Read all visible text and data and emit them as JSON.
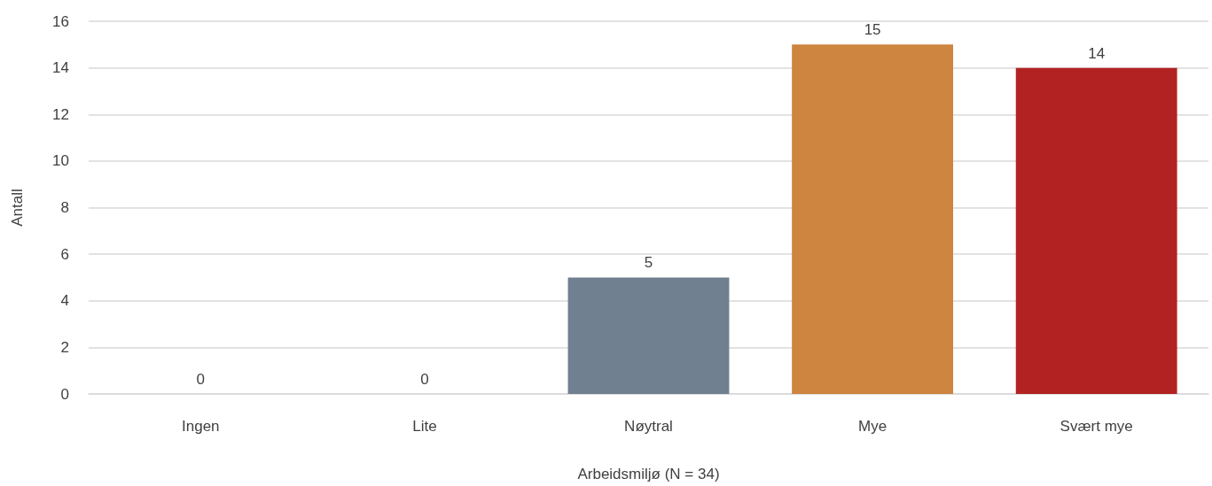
{
  "chart_data": {
    "type": "bar",
    "xlabel": "Arbeidsmiljø (N = 34)",
    "ylabel": "Antall",
    "categories": [
      "Ingen",
      "Lite",
      "Nøytral",
      "Mye",
      "Svært mye"
    ],
    "values": [
      0,
      0,
      5,
      15,
      14
    ],
    "colors": [
      "#708090",
      "#708090",
      "#708090",
      "#cd853f",
      "#b22222"
    ],
    "ylim": [
      0,
      16
    ],
    "yticks": [
      0,
      2,
      4,
      6,
      8,
      10,
      12,
      14,
      16
    ],
    "grid": "y",
    "data_labels": true
  }
}
